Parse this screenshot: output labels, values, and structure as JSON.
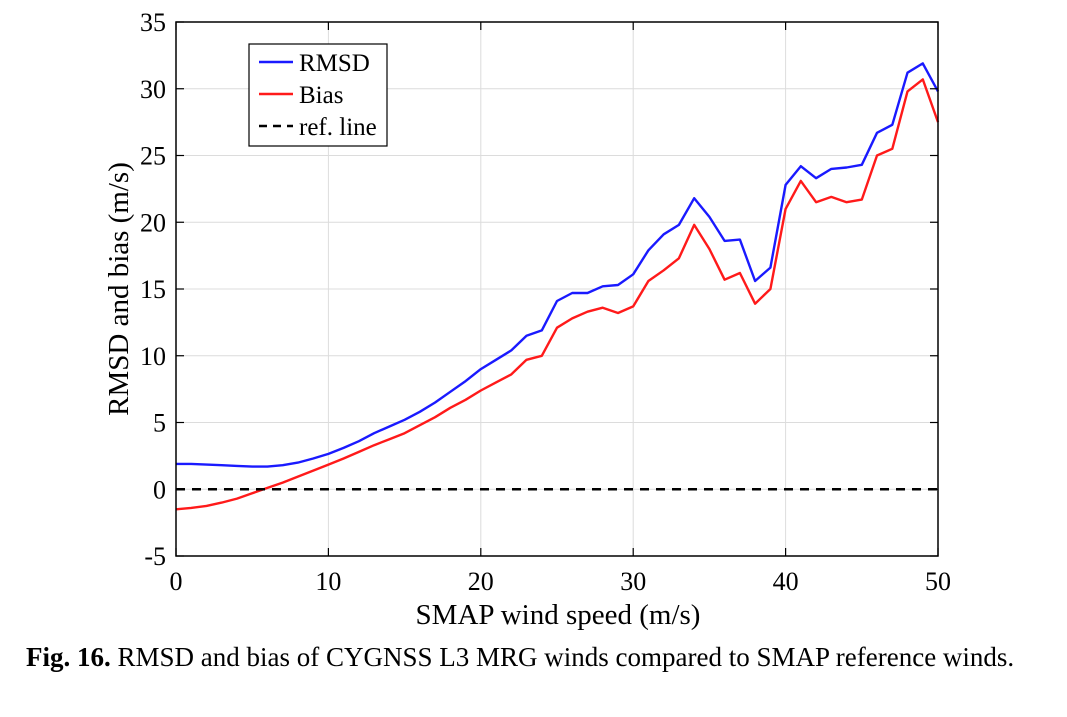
{
  "chart_data": {
    "type": "line",
    "xlabel": "SMAP wind speed (m/s)",
    "ylabel": "RMSD and bias (m/s)",
    "xlim": [
      0,
      50
    ],
    "ylim": [
      -5,
      35
    ],
    "xticks": [
      0,
      10,
      20,
      30,
      40,
      50
    ],
    "yticks": [
      -5,
      0,
      5,
      10,
      15,
      20,
      25,
      30,
      35
    ],
    "grid": true,
    "legend_position": "top-left (inside)",
    "series": [
      {
        "name": "RMSD",
        "color": "#1a1aff",
        "style": "solid",
        "x": [
          0,
          1,
          2,
          3,
          4,
          5,
          6,
          7,
          8,
          9,
          10,
          11,
          12,
          13,
          14,
          15,
          16,
          17,
          18,
          19,
          20,
          21,
          22,
          23,
          24,
          25,
          26,
          27,
          28,
          29,
          30,
          31,
          32,
          33,
          34,
          35,
          36,
          37,
          38,
          39,
          40,
          41,
          42,
          43,
          44,
          45,
          46,
          47,
          48,
          49,
          50
        ],
        "y": [
          1.9,
          1.9,
          1.85,
          1.8,
          1.75,
          1.7,
          1.7,
          1.8,
          2.0,
          2.3,
          2.65,
          3.1,
          3.6,
          4.2,
          4.7,
          5.2,
          5.8,
          6.5,
          7.3,
          8.1,
          9.0,
          9.7,
          10.4,
          11.5,
          11.9,
          14.1,
          14.7,
          14.7,
          15.2,
          15.3,
          16.1,
          17.9,
          19.1,
          19.8,
          21.8,
          20.4,
          18.6,
          18.7,
          15.6,
          16.6,
          22.8,
          24.2,
          23.3,
          24.0,
          24.1,
          24.3,
          26.7,
          27.3,
          31.2,
          31.9,
          29.8
        ]
      },
      {
        "name": "Bias",
        "color": "#ff1a1a",
        "style": "solid",
        "x": [
          0,
          1,
          2,
          3,
          4,
          5,
          6,
          7,
          8,
          9,
          10,
          11,
          12,
          13,
          14,
          15,
          16,
          17,
          18,
          19,
          20,
          21,
          22,
          23,
          24,
          25,
          26,
          27,
          28,
          29,
          30,
          31,
          32,
          33,
          34,
          35,
          36,
          37,
          38,
          39,
          40,
          41,
          42,
          43,
          44,
          45,
          46,
          47,
          48,
          49,
          50
        ],
        "y": [
          -1.5,
          -1.4,
          -1.25,
          -1.0,
          -0.7,
          -0.3,
          0.1,
          0.5,
          0.95,
          1.4,
          1.85,
          2.3,
          2.8,
          3.3,
          3.75,
          4.2,
          4.8,
          5.4,
          6.1,
          6.7,
          7.4,
          8.0,
          8.6,
          9.7,
          10.0,
          12.1,
          12.8,
          13.3,
          13.6,
          13.2,
          13.7,
          15.6,
          16.4,
          17.3,
          19.8,
          18.0,
          15.7,
          16.2,
          13.9,
          15.0,
          21.0,
          23.1,
          21.5,
          21.9,
          21.5,
          21.7,
          25.0,
          25.5,
          29.8,
          30.7,
          27.5
        ]
      },
      {
        "name": "ref. line",
        "color": "#000000",
        "style": "dashed",
        "x": [
          0,
          50
        ],
        "y": [
          0,
          0
        ]
      }
    ]
  },
  "caption": {
    "label": "Fig. 16.",
    "text": " RMSD and bias of CYGNSS L3 MRG winds compared to SMAP reference winds."
  }
}
